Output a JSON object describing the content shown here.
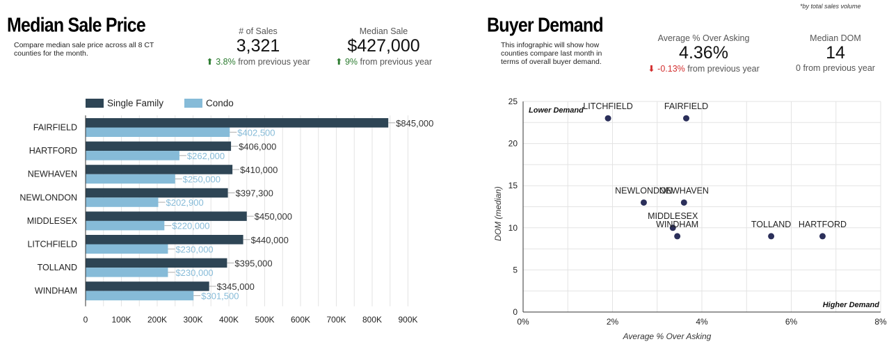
{
  "footnote": "*by total sales volume",
  "left": {
    "title": "Median Sale Price",
    "description": "Compare median sale price across all 8 CT counties for the month.",
    "stats": [
      {
        "label": "# of Sales",
        "value": "3,321",
        "change": "3.8%",
        "change_text": "from previous year",
        "direction": "up"
      },
      {
        "label": "Median Sale",
        "value": "$427,000",
        "change": "9%",
        "change_text": "from previous year",
        "direction": "up"
      }
    ]
  },
  "right": {
    "title": "Buyer Demand",
    "description": "This infographic will show how counties compare last month in terms of overall buyer demand.",
    "stats": [
      {
        "label": "Average % Over Asking",
        "value": "4.36%",
        "change": "-0.13%",
        "change_text": "from previous year",
        "direction": "down"
      },
      {
        "label": "Median DOM",
        "value": "14",
        "change": "",
        "change_text": "0 from previous year",
        "direction": "none"
      }
    ]
  },
  "colors": {
    "single_family": "#2e4555",
    "condo": "#86bbd8",
    "condo_label": "#86bbd8",
    "point": "#2b2f5a",
    "up": "#2e7d32",
    "down": "#d32f2f"
  },
  "chart_data": [
    {
      "type": "bar",
      "orientation": "horizontal",
      "categories": [
        "FAIRFIELD",
        "HARTFORD",
        "NEWHAVEN",
        "NEWLONDON",
        "MIDDLESEX",
        "LITCHFIELD",
        "TOLLAND",
        "WINDHAM"
      ],
      "series": [
        {
          "name": "Single Family",
          "values": [
            845000,
            406000,
            410000,
            397300,
            450000,
            440000,
            395000,
            345000
          ],
          "labels": [
            "$845,000",
            "$406,000",
            "$410,000",
            "$397,300",
            "$450,000",
            "$440,000",
            "$395,000",
            "$345,000"
          ]
        },
        {
          "name": "Condo",
          "values": [
            402500,
            262000,
            250000,
            202900,
            220000,
            230000,
            230000,
            301500
          ],
          "labels": [
            "$402,500",
            "$262,000",
            "$250,000",
            "$202,900",
            "$220,000",
            "$230,000",
            "$230,000",
            "$301,500"
          ]
        }
      ],
      "xlim": [
        0,
        900000
      ],
      "xticks": [
        "0",
        "100K",
        "200K",
        "300K",
        "400K",
        "500K",
        "600K",
        "700K",
        "800K",
        "900K"
      ],
      "legend": "top-left",
      "grid": true
    },
    {
      "type": "scatter",
      "xlabel": "Average % Over Asking",
      "ylabel": "DOM (median)",
      "xlim": [
        0,
        8
      ],
      "ylim": [
        0,
        25
      ],
      "xticks": [
        "0%",
        "2%",
        "4%",
        "6%",
        "8%"
      ],
      "yticks": [
        "0",
        "5",
        "10",
        "15",
        "20",
        "25"
      ],
      "grid": true,
      "annotations": [
        {
          "text": "Lower Demand",
          "position": "top-left"
        },
        {
          "text": "Higher Demand",
          "position": "bottom-right"
        }
      ],
      "points": [
        {
          "label": "LITCHFIELD",
          "x": 1.9,
          "y": 23
        },
        {
          "label": "FAIRFIELD",
          "x": 3.65,
          "y": 23
        },
        {
          "label": "NEWLONDON",
          "x": 2.7,
          "y": 13
        },
        {
          "label": "NEWHAVEN",
          "x": 3.6,
          "y": 13
        },
        {
          "label": "MIDDLESEX",
          "x": 3.35,
          "y": 10
        },
        {
          "label": "WINDHAM",
          "x": 3.45,
          "y": 9
        },
        {
          "label": "TOLLAND",
          "x": 5.55,
          "y": 9
        },
        {
          "label": "HARTFORD",
          "x": 6.7,
          "y": 9
        }
      ]
    }
  ]
}
